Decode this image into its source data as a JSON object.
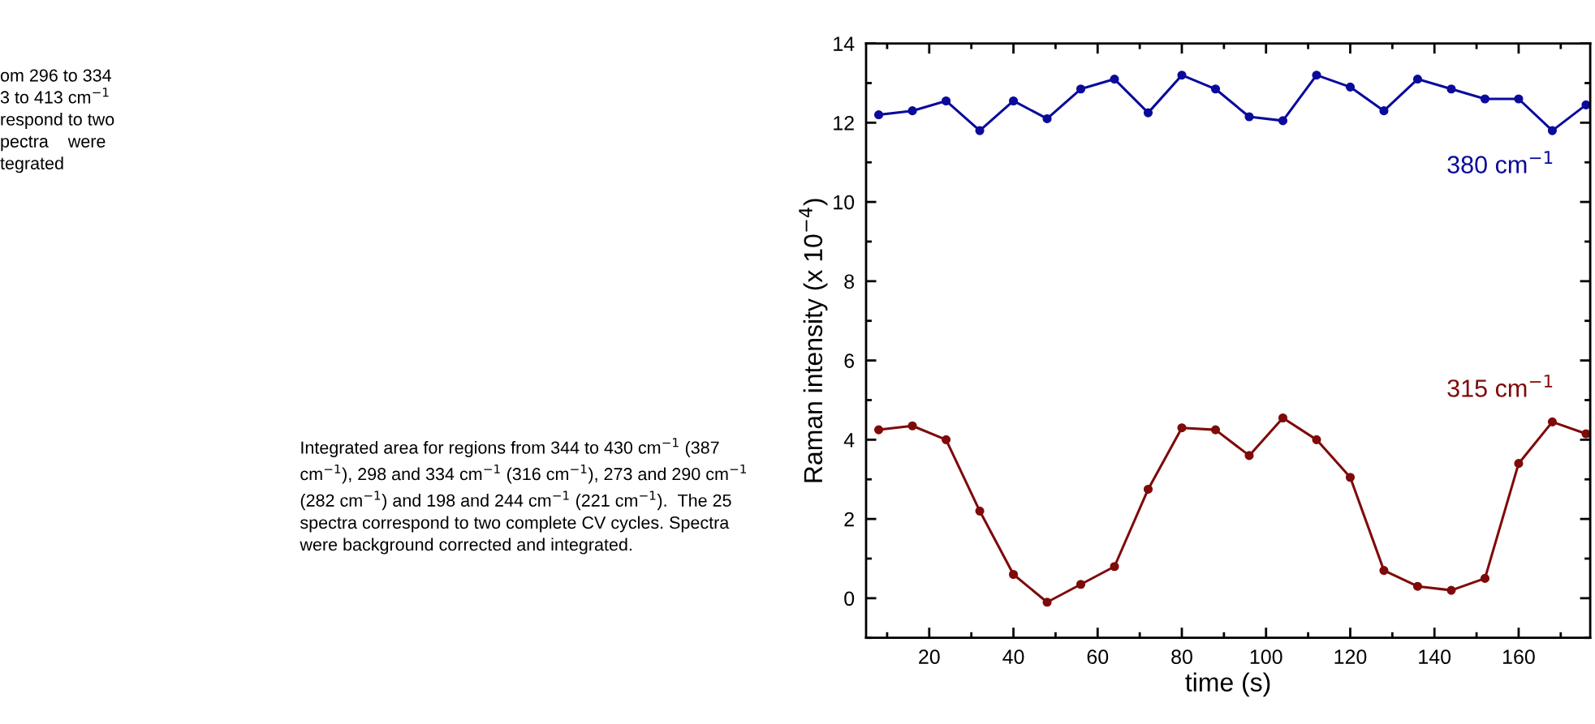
{
  "chart_data": {
    "type": "line",
    "xlabel": "time (s)",
    "ylabel": "Raman intensity (x 10$^{−4}$)",
    "x": [
      8,
      16,
      24,
      32,
      40,
      48,
      56,
      64,
      72,
      80,
      88,
      96,
      104,
      112,
      120,
      128,
      136,
      144,
      152,
      160,
      168,
      176
    ],
    "series": [
      {
        "name": "380 cm$^{−1}$",
        "color": "#0a0a9c",
        "values": [
          12.2,
          12.3,
          12.55,
          11.8,
          12.55,
          12.1,
          12.85,
          13.1,
          12.25,
          13.2,
          12.85,
          12.15,
          12.05,
          13.2,
          12.9,
          12.3,
          13.1,
          12.85,
          12.6,
          12.6,
          11.8,
          12.45
        ]
      },
      {
        "name": "315 cm$^{−1}$",
        "color": "#7f0a0a",
        "values": [
          4.25,
          4.35,
          4.0,
          2.2,
          0.6,
          -0.1,
          0.35,
          0.8,
          2.75,
          4.3,
          4.25,
          3.6,
          4.55,
          4.0,
          3.05,
          0.7,
          0.3,
          0.2,
          0.5,
          3.4,
          4.45,
          4.15
        ]
      }
    ],
    "xlim": [
      5,
      177
    ],
    "ylim": [
      -1,
      14
    ],
    "xticks": [
      20,
      40,
      60,
      80,
      100,
      120,
      140,
      160
    ],
    "yticks": [
      0,
      2,
      4,
      6,
      8,
      10,
      12,
      14
    ],
    "marker": "circle",
    "line_style": "solid",
    "grid": false,
    "legend": false,
    "annotations": [
      "om 296 to 334\n3 to 413 cm$^{−1}$\nrespond to two\npectra    were\ntegrated",
      "Integrated area for regions from 344 to 430 cm$^{−1}$ (387\ncm$^{−1}$), 298 and 334 cm$^{−1}$ (316 cm$^{−1}$), 273 and 290 cm$^{−1}$\n(282 cm$^{−1}$) and 198 and 244 cm$^{−1}$ (221 cm$^{−1}$).  The 25\nspectra correspond to two complete CV cycles. Spectra\nwere background corrected and integrated."
    ]
  }
}
